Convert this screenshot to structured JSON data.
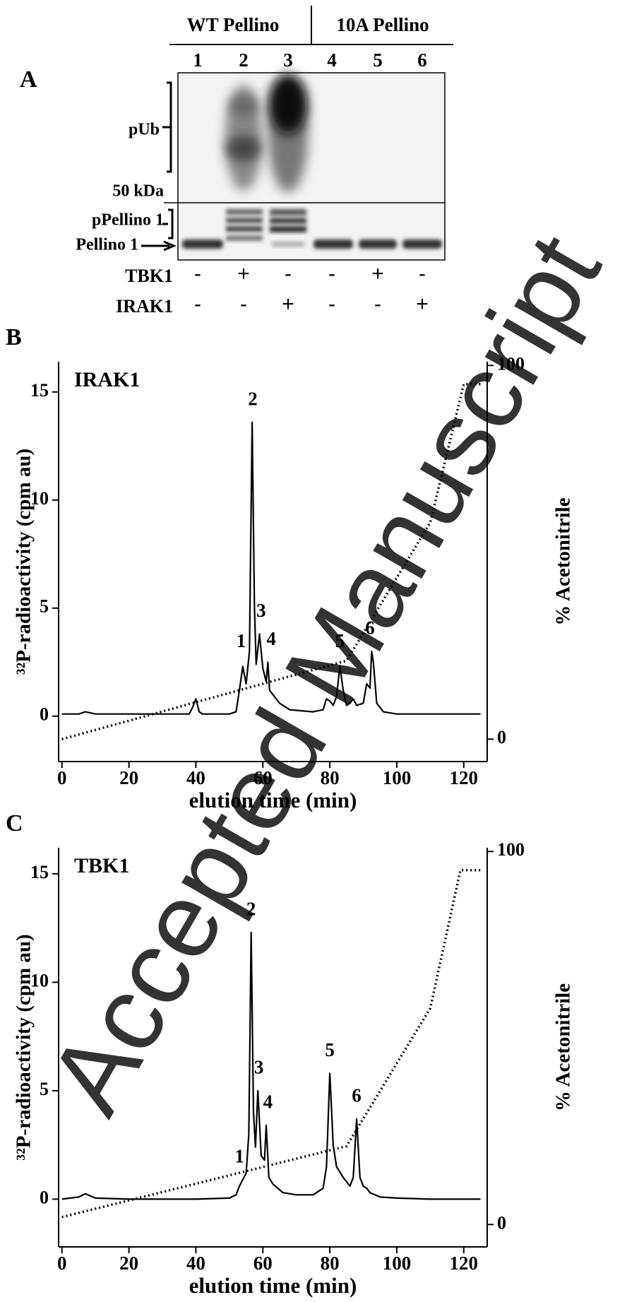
{
  "gel": {
    "panel_label": "A",
    "groups": [
      "WT Pellino",
      "10A Pellino"
    ],
    "lanes": [
      "1",
      "2",
      "3",
      "4",
      "5",
      "6"
    ],
    "markers": [
      "pUb",
      "50 kDa",
      "pPellino 1",
      "Pellino 1"
    ],
    "treatments": [
      {
        "name": "TBK1",
        "signs": [
          "-",
          "+",
          "-",
          "-",
          "+",
          "-"
        ]
      },
      {
        "name": "IRAK1",
        "signs": [
          "-",
          "-",
          "+",
          "-",
          "-",
          "+"
        ]
      }
    ]
  },
  "watermark": "Accepted Manuscript",
  "chart_data": [
    {
      "type": "line",
      "panel_label": "B",
      "inset_label": "IRAK1",
      "xlabel": "elution time (min)",
      "ylabel": "³²P-radioactivity  (cpm au)",
      "y2label": "% Acetonitrile",
      "xlim": [
        -1,
        127
      ],
      "xticks": [
        0,
        20,
        40,
        60,
        80,
        100,
        120
      ],
      "ylim": [
        -2.1,
        16.4
      ],
      "yticks": [
        0,
        5,
        10,
        15
      ],
      "y2lim": [
        -6,
        101
      ],
      "y2ticks": [
        0,
        100
      ],
      "annotations": [
        "1",
        "2",
        "3",
        "4",
        "5",
        "6"
      ],
      "series": [
        {
          "color": "#000000",
          "dash": "solid",
          "x": [
            0,
            5,
            7,
            10,
            20,
            30,
            38,
            39,
            40,
            41,
            42,
            50,
            52,
            53,
            54,
            55,
            56,
            56.8,
            57.5,
            58,
            59,
            60,
            61,
            61.5,
            62,
            63,
            65,
            68,
            75,
            78,
            79,
            80,
            81,
            82,
            83,
            84,
            85,
            86,
            87,
            88,
            90,
            91,
            92,
            92.5,
            93,
            94,
            96,
            100,
            110,
            120,
            125
          ],
          "values": [
            0.1,
            0.1,
            0.2,
            0.1,
            0.1,
            0.1,
            0.1,
            0.4,
            0.8,
            0.2,
            0.1,
            0.1,
            0.2,
            1.2,
            2.3,
            1.5,
            3.0,
            13.6,
            5,
            2.4,
            3.8,
            2.2,
            1.6,
            2.5,
            1.2,
            1.0,
            0.6,
            0.3,
            0.2,
            0.3,
            0.8,
            0.7,
            0.5,
            0.9,
            2.3,
            1.2,
            0.5,
            0.6,
            0.8,
            0.5,
            0.6,
            1.5,
            1.3,
            3.0,
            2.5,
            0.6,
            0.2,
            0.1,
            0.1,
            0.1,
            0.1
          ]
        },
        {
          "color": "#000000",
          "dash": "dotted",
          "axis": "y2",
          "x": [
            0,
            85,
            110,
            120,
            125
          ],
          "values": [
            0,
            21,
            58,
            95,
            95
          ]
        }
      ]
    },
    {
      "type": "line",
      "panel_label": "C",
      "inset_label": "TBK1",
      "xlabel": "elution time (min)",
      "ylabel": "³²P-radioactivity  (cpm au)",
      "y2label": "% Acetonitrile",
      "xlim": [
        -1,
        127
      ],
      "xticks": [
        0,
        20,
        40,
        60,
        80,
        100,
        120
      ],
      "ylim": [
        -2.2,
        16.2
      ],
      "yticks": [
        0,
        5,
        10,
        15
      ],
      "y2lim": [
        -6,
        101
      ],
      "y2ticks": [
        0,
        100
      ],
      "annotations": [
        "1",
        "2",
        "3",
        "4",
        "5",
        "6"
      ],
      "series": [
        {
          "color": "#000000",
          "dash": "solid",
          "x": [
            0,
            5,
            7,
            10,
            20,
            30,
            40,
            50,
            52,
            53,
            54,
            55,
            55.8,
            56.5,
            57.2,
            57.8,
            58.5,
            59.5,
            60.5,
            61,
            61.8,
            63,
            66,
            70,
            75,
            78,
            79,
            80,
            81,
            82,
            84,
            86,
            87,
            88,
            89,
            90,
            91,
            92,
            95,
            100,
            110,
            120,
            125
          ],
          "values": [
            0,
            0.1,
            0.25,
            0.05,
            0,
            0,
            0,
            0.05,
            0.2,
            0.6,
            0.9,
            1.2,
            3,
            12.3,
            4,
            2.4,
            5.0,
            2,
            1.8,
            3.4,
            1.0,
            0.7,
            0.3,
            0.2,
            0.2,
            0.5,
            1.5,
            5.8,
            2.5,
            1.5,
            1.0,
            0.6,
            1.0,
            3.7,
            1.0,
            0.6,
            0.5,
            0.3,
            0.1,
            0.05,
            0,
            0,
            0
          ]
        },
        {
          "color": "#000000",
          "dash": "dotted",
          "axis": "y2",
          "x": [
            0,
            85,
            110,
            119,
            125
          ],
          "values": [
            2,
            21,
            58,
            95,
            95
          ]
        }
      ]
    }
  ]
}
